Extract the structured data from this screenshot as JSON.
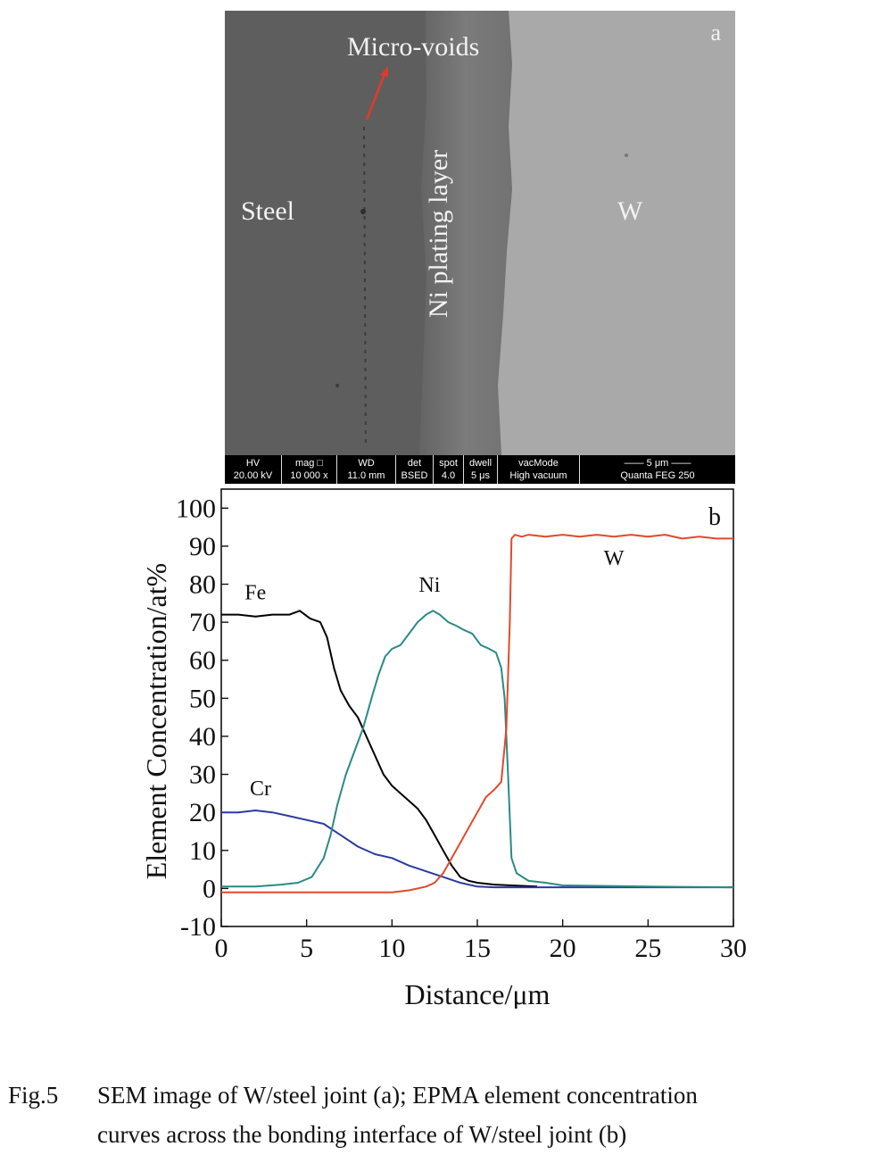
{
  "panel_a": {
    "panel_label": "a",
    "labels": {
      "micro_voids": "Micro-voids",
      "steel": "Steel",
      "ni_layer": "Ni plating layer",
      "w": "W"
    },
    "info_bar": [
      {
        "head": "HV",
        "value": "20.00 kV"
      },
      {
        "head": "mag □",
        "value": "10 000 x"
      },
      {
        "head": "WD",
        "value": "11.0 mm"
      },
      {
        "head": "det",
        "value": "BSED"
      },
      {
        "head": "spot",
        "value": "4.0"
      },
      {
        "head": "dwell",
        "value": "5 μs"
      },
      {
        "head": "vacMode",
        "value": "High vacuum"
      },
      {
        "head": "—— 5 μm ——",
        "value": "Quanta FEG 250"
      }
    ],
    "colors": {
      "steel": "#5e5e5e",
      "ni": "#777777",
      "w": "#a9a9a9",
      "arrow": "#e23a2a"
    }
  },
  "chart_data": {
    "type": "line",
    "panel_label": "b",
    "xlabel": "Distance/μm",
    "ylabel": "Element Concentration/at%",
    "xlim": [
      0,
      30
    ],
    "ylim": [
      -10,
      105
    ],
    "xticks": [
      0,
      5,
      10,
      15,
      20,
      25,
      30
    ],
    "yticks": [
      -10,
      0,
      10,
      20,
      30,
      40,
      50,
      60,
      70,
      80,
      90,
      100
    ],
    "series": [
      {
        "name": "Fe",
        "color": "#000000",
        "x": [
          0,
          1,
          2,
          3,
          4,
          4.6,
          5.2,
          5.8,
          6.2,
          6.6,
          7.0,
          7.5,
          8.0,
          8.5,
          9.0,
          9.5,
          10.0,
          10.5,
          11.0,
          11.5,
          12.0,
          12.5,
          13.0,
          13.5,
          14.0,
          14.5,
          15.0,
          16.0,
          17.0,
          18.5
        ],
        "y": [
          72,
          72,
          71.5,
          72,
          72,
          73,
          71,
          70,
          66,
          58,
          52,
          48,
          45,
          40,
          35,
          30,
          27,
          25,
          23,
          21,
          18,
          14,
          10,
          6,
          3,
          2,
          1.5,
          1,
          0.8,
          0.5
        ]
      },
      {
        "name": "Cr",
        "color": "#2b3aa0",
        "x": [
          0,
          1,
          2,
          3,
          4,
          5,
          6,
          7,
          8,
          9,
          10,
          11,
          12,
          13,
          14,
          15,
          16,
          18,
          20,
          25,
          30
        ],
        "y": [
          20,
          20,
          20.5,
          20,
          19,
          18,
          17,
          14,
          11,
          9,
          8,
          6,
          4.5,
          3,
          1.5,
          0.5,
          0.3,
          0.3,
          0.3,
          0.3,
          0.3
        ]
      },
      {
        "name": "Ni",
        "color": "#2a8a86",
        "x": [
          0,
          2,
          3.5,
          4.5,
          5.3,
          6.0,
          6.4,
          6.8,
          7.3,
          7.8,
          8.3,
          8.8,
          9.2,
          9.6,
          10.0,
          10.5,
          11.0,
          11.5,
          12.0,
          12.4,
          12.8,
          13.3,
          13.8,
          14.2,
          14.7,
          15.2,
          15.7,
          16.1,
          16.4,
          16.6,
          16.8,
          17.0,
          17.3,
          18.0,
          19.0,
          20.0,
          25.0,
          30.0
        ],
        "y": [
          0.5,
          0.5,
          1,
          1.5,
          3,
          8,
          14,
          22,
          30,
          36,
          42,
          50,
          56,
          61,
          63,
          64,
          67,
          70,
          72,
          73,
          72,
          70,
          69,
          68,
          67,
          64,
          63,
          62,
          58,
          50,
          30,
          8,
          4,
          2,
          1.5,
          0.8,
          0.5,
          0.3
        ]
      },
      {
        "name": "W",
        "color": "#e04a2a",
        "x": [
          0,
          5,
          10,
          11,
          12,
          12.5,
          13,
          13.5,
          14,
          14.5,
          15,
          15.5,
          16,
          16.4,
          16.7,
          16.9,
          17.0,
          17.2,
          17.6,
          18.0,
          19.0,
          20.0,
          21.0,
          22.0,
          23.0,
          24.0,
          25.0,
          26.0,
          27.0,
          28.0,
          29.0,
          30.0
        ],
        "y": [
          -1,
          -1,
          -1,
          -0.5,
          0.5,
          1.5,
          4,
          8,
          12,
          16,
          20,
          24,
          26,
          28,
          42,
          70,
          92,
          93,
          92.5,
          93,
          92.5,
          93,
          92.5,
          93,
          92.5,
          93,
          92.5,
          93,
          92,
          92.5,
          92,
          92
        ]
      }
    ],
    "annotations": [
      {
        "text": "Fe",
        "x": 2.0,
        "y": 76
      },
      {
        "text": "Cr",
        "x": 2.3,
        "y": 24.5
      },
      {
        "text": "Ni",
        "x": 12.2,
        "y": 78
      },
      {
        "text": "W",
        "x": 23.0,
        "y": 85
      }
    ]
  },
  "caption": {
    "label": "Fig.5",
    "line1": "SEM image of W/steel joint (a); EPMA element concentration",
    "line2": "curves across the bonding interface of W/steel joint (b)"
  }
}
